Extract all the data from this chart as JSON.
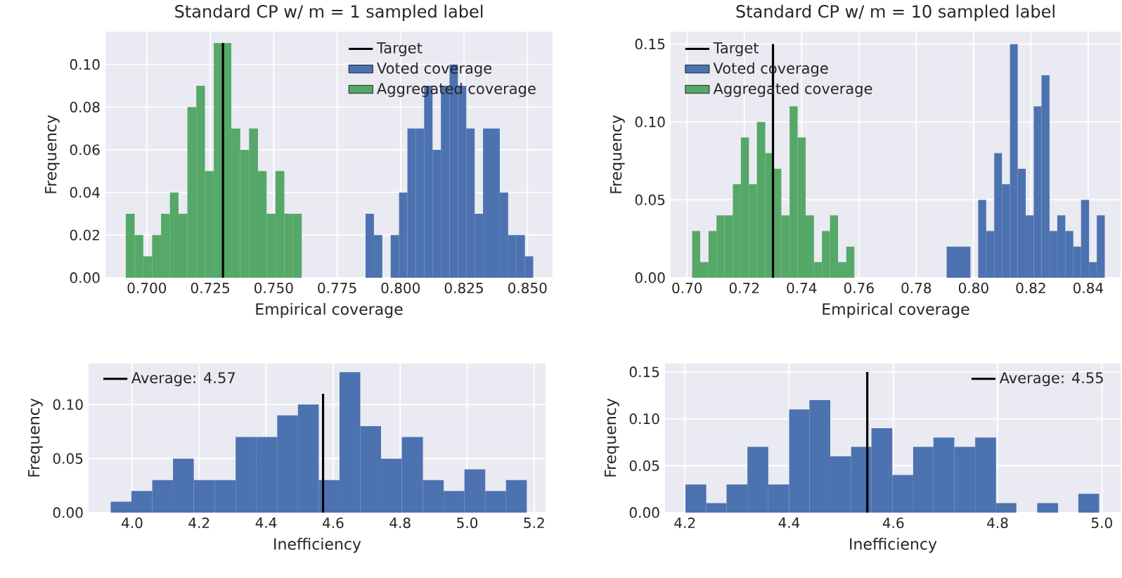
{
  "chart_data": [
    {
      "type": "histogram",
      "title": "Standard CP w/ m = 1 sampled label",
      "xlabel": "Empirical coverage",
      "ylabel": "Frequency",
      "xlim": [
        0.6837,
        0.8599
      ],
      "ylim": [
        0,
        0.1154
      ],
      "grid": true,
      "legend": "top right",
      "xticks": [
        {
          "value": 0.7,
          "label": "0.700"
        },
        {
          "value": 0.725,
          "label": "0.725"
        },
        {
          "value": 0.75,
          "label": "0.750"
        },
        {
          "value": 0.775,
          "label": "0.775"
        },
        {
          "value": 0.8,
          "label": "0.800"
        },
        {
          "value": 0.825,
          "label": "0.825"
        },
        {
          "value": 0.85,
          "label": "0.850"
        }
      ],
      "yticks": [
        {
          "value": 0,
          "label": "0.00"
        },
        {
          "value": 0.02,
          "label": "0.02"
        },
        {
          "value": 0.04,
          "label": "0.04"
        },
        {
          "value": 0.06,
          "label": "0.06"
        },
        {
          "value": 0.08,
          "label": "0.08"
        },
        {
          "value": 0.1,
          "label": "0.10"
        }
      ],
      "series": [
        {
          "name": "Target",
          "type": "line",
          "color": "#000000",
          "x": [
            0.73,
            0.73
          ],
          "values": [
            0,
            0.11
          ]
        },
        {
          "name": "Voted coverage",
          "color": "#4c72b0",
          "bins": [
            0.7862,
            0.7895,
            0.7928,
            0.7961,
            0.7994,
            0.8027,
            0.806,
            0.8093,
            0.8126,
            0.8159,
            0.8193,
            0.8226,
            0.8259,
            0.8292,
            0.8325,
            0.8358,
            0.8391,
            0.8424,
            0.8457,
            0.849,
            0.8523
          ],
          "values": [
            0.03,
            0.02,
            0,
            0.02,
            0.04,
            0.07,
            0.07,
            0.09,
            0.06,
            0.09,
            0.1,
            0.09,
            0.07,
            0.03,
            0.07,
            0.07,
            0.04,
            0.02,
            0.02,
            0.01
          ]
        },
        {
          "name": "Aggregated coverage",
          "color": "#55a868",
          "bins": [
            0.6917,
            0.6952,
            0.6986,
            0.7021,
            0.7056,
            0.7091,
            0.7125,
            0.716,
            0.7195,
            0.7229,
            0.7264,
            0.7299,
            0.7333,
            0.7368,
            0.7403,
            0.7438,
            0.7472,
            0.7507,
            0.7542,
            0.7576,
            0.7611
          ],
          "values": [
            0.03,
            0.02,
            0.01,
            0.02,
            0.03,
            0.04,
            0.03,
            0.08,
            0.09,
            0.05,
            0.11,
            0.11,
            0.07,
            0.06,
            0.07,
            0.05,
            0.03,
            0.05,
            0.03,
            0.03
          ]
        }
      ]
    },
    {
      "type": "histogram",
      "title": "Standard CP w/ m = 10 sampled label",
      "xlabel": "Empirical coverage",
      "ylabel": "Frequency",
      "xlim": [
        0.6943,
        0.8513
      ],
      "ylim": [
        0,
        0.158
      ],
      "grid": true,
      "legend": "top left",
      "xticks": [
        {
          "value": 0.7,
          "label": "0.70"
        },
        {
          "value": 0.72,
          "label": "0.72"
        },
        {
          "value": 0.74,
          "label": "0.74"
        },
        {
          "value": 0.76,
          "label": "0.76"
        },
        {
          "value": 0.78,
          "label": "0.78"
        },
        {
          "value": 0.8,
          "label": "0.80"
        },
        {
          "value": 0.82,
          "label": "0.82"
        },
        {
          "value": 0.84,
          "label": "0.84"
        }
      ],
      "yticks": [
        {
          "value": 0,
          "label": "0.00"
        },
        {
          "value": 0.05,
          "label": "0.05"
        },
        {
          "value": 0.1,
          "label": "0.10"
        },
        {
          "value": 0.15,
          "label": "0.15"
        }
      ],
      "series": [
        {
          "name": "Target",
          "type": "line",
          "color": "#000000",
          "x": [
            0.73,
            0.73
          ],
          "values": [
            0,
            0.15
          ]
        },
        {
          "name": "Voted coverage",
          "color": "#4c72b0",
          "bins": [
            0.7906,
            0.7934,
            0.7961,
            0.7989,
            0.8016,
            0.8044,
            0.8072,
            0.8099,
            0.8127,
            0.8154,
            0.8182,
            0.821,
            0.8237,
            0.8265,
            0.8292,
            0.832,
            0.8348,
            0.8375,
            0.8403,
            0.843,
            0.8458
          ],
          "values": [
            0.02,
            0.02,
            0.02,
            0,
            0.05,
            0.03,
            0.08,
            0.06,
            0.15,
            0.07,
            0.04,
            0.11,
            0.13,
            0.03,
            0.04,
            0.03,
            0.02,
            0.05,
            0.01,
            0.04
          ]
        },
        {
          "name": "Aggregated coverage",
          "color": "#55a868",
          "bins": [
            0.7018,
            0.7046,
            0.7075,
            0.7103,
            0.7131,
            0.716,
            0.7188,
            0.7216,
            0.7244,
            0.7273,
            0.7301,
            0.7329,
            0.7358,
            0.7386,
            0.7414,
            0.7443,
            0.7471,
            0.7499,
            0.7527,
            0.7556,
            0.7584
          ],
          "values": [
            0.03,
            0.01,
            0.03,
            0.04,
            0.04,
            0.06,
            0.09,
            0.06,
            0.1,
            0.08,
            0.07,
            0.04,
            0.11,
            0.09,
            0.04,
            0.01,
            0.03,
            0.04,
            0.01,
            0.02
          ]
        }
      ]
    },
    {
      "type": "histogram",
      "xlabel": "Inefficiency",
      "ylabel": "Frequency",
      "xlim": [
        3.87,
        5.234
      ],
      "ylim": [
        0,
        0.138
      ],
      "grid": true,
      "legend": "top left",
      "xticks": [
        {
          "value": 4.0,
          "label": "4.0"
        },
        {
          "value": 4.2,
          "label": "4.2"
        },
        {
          "value": 4.4,
          "label": "4.4"
        },
        {
          "value": 4.6,
          "label": "4.6"
        },
        {
          "value": 4.8,
          "label": "4.8"
        },
        {
          "value": 5.0,
          "label": "5.0"
        },
        {
          "value": 5.2,
          "label": "5.2"
        }
      ],
      "yticks": [
        {
          "value": 0,
          "label": "0.00"
        },
        {
          "value": 0.05,
          "label": "0.05"
        },
        {
          "value": 0.1,
          "label": "0.10"
        }
      ],
      "series": [
        {
          "color": "#4c72b0",
          "bins": [
            3.936,
            3.998,
            4.06,
            4.122,
            4.184,
            4.247,
            4.309,
            4.371,
            4.433,
            4.495,
            4.557,
            4.619,
            4.681,
            4.743,
            4.805,
            4.868,
            4.93,
            4.992,
            5.054,
            5.116,
            5.178
          ],
          "values": [
            0.01,
            0.02,
            0.03,
            0.05,
            0.03,
            0.03,
            0.07,
            0.07,
            0.09,
            0.1,
            0.03,
            0.13,
            0.08,
            0.05,
            0.07,
            0.03,
            0.02,
            0.04,
            0.02,
            0.03
          ]
        },
        {
          "name": "Average: 4.57",
          "type": "line",
          "color": "#000000",
          "x": [
            4.57,
            4.57
          ],
          "values": [
            0,
            0.11
          ]
        }
      ]
    },
    {
      "type": "histogram",
      "xlabel": "Inefficiency",
      "ylabel": "Frequency",
      "xlim": [
        4.162,
        5.036
      ],
      "ylim": [
        0,
        0.159
      ],
      "grid": true,
      "legend": "top right",
      "xticks": [
        {
          "value": 4.2,
          "label": "4.2"
        },
        {
          "value": 4.4,
          "label": "4.4"
        },
        {
          "value": 4.6,
          "label": "4.6"
        },
        {
          "value": 4.8,
          "label": "4.8"
        },
        {
          "value": 5.0,
          "label": "5.0"
        }
      ],
      "yticks": [
        {
          "value": 0,
          "label": "0.00"
        },
        {
          "value": 0.05,
          "label": "0.05"
        },
        {
          "value": 0.1,
          "label": "0.10"
        },
        {
          "value": 0.15,
          "label": "0.15"
        }
      ],
      "series": [
        {
          "color": "#4c72b0",
          "bins": [
            4.201,
            4.241,
            4.28,
            4.32,
            4.36,
            4.4,
            4.439,
            4.479,
            4.519,
            4.558,
            4.598,
            4.638,
            4.677,
            4.717,
            4.757,
            4.797,
            4.836,
            4.876,
            4.916,
            4.955,
            4.995
          ],
          "values": [
            0.03,
            0.01,
            0.03,
            0.07,
            0.03,
            0.11,
            0.12,
            0.06,
            0.07,
            0.09,
            0.04,
            0.07,
            0.08,
            0.07,
            0.08,
            0.01,
            0,
            0.01,
            0,
            0.02
          ]
        },
        {
          "name": "Average: 4.55",
          "type": "line",
          "color": "#000000",
          "x": [
            4.55,
            4.55
          ],
          "values": [
            0,
            0.15
          ]
        }
      ]
    }
  ]
}
